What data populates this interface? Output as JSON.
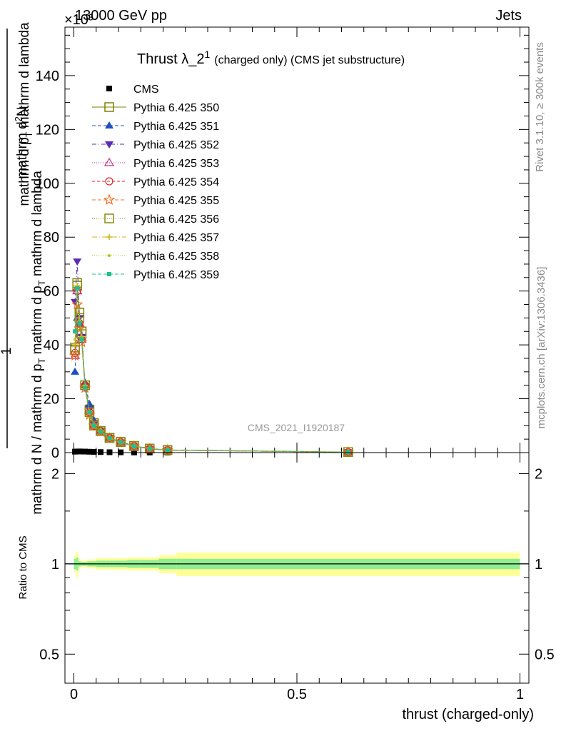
{
  "header": {
    "energy_label": "13000 GeV pp",
    "exponent_label": "×10³",
    "category_label": "Jets",
    "rivet_label": "Rivet 3.1.10, ≥ 300k events",
    "mcplots_label": "mcplots.cern.ch [arXiv:1306.3436]",
    "analysis_label": "CMS_2021_I1920187"
  },
  "colors": {
    "band_inner": "#90ee90",
    "band_outer": "#ffff99",
    "cms": "#000000"
  },
  "chart_data": [
    {
      "type": "line",
      "title": "Thrust λ_2¹",
      "title_parts": {
        "main": "Thrust λ_2",
        "sup": "1",
        "suffix": "(charged only) (CMS jet substructure)"
      },
      "ylabel": "1/(mathrm d N / mathrm d p_T mathrm d p_T) mathrm d²N / mathrm d p_T mathrm d lambda",
      "ylabel_parts": {
        "top": "mathrm d²N",
        "top_plain": "mathrm d",
        "top_sup": "2",
        "top_rest": "N",
        "bottom_a": "mathrm d p",
        "bottom_sub": "T",
        "bottom_b": " mathrm d lambda",
        "one": "1",
        "den_a": "mathrm d N / mathrm d p",
        "den_sub": "T",
        "den_b": " mathrm d p",
        "den_sub2": "T",
        "den_c": " mathrm d lambda"
      },
      "ylim": [
        0,
        158
      ],
      "ytick_values": [
        0,
        20,
        40,
        60,
        80,
        100,
        120,
        140
      ],
      "ytick_labels": [
        "0",
        "20",
        "40",
        "60",
        "80",
        "100",
        "120",
        "140"
      ],
      "xlim": [
        -0.02,
        1.02
      ],
      "grid": false,
      "legend_position": "top-left",
      "x": [
        0.0025,
        0.0075,
        0.0125,
        0.0175,
        0.025,
        0.035,
        0.045,
        0.06,
        0.08,
        0.105,
        0.135,
        0.17,
        0.21,
        0.615
      ],
      "series": [
        {
          "name": "CMS",
          "color": "#000000",
          "marker": "square-filled",
          "dash": "",
          "values": [
            0.35,
            0.4,
            0.42,
            0.4,
            0.38,
            0.32,
            0.26,
            0.2,
            0.14,
            0.1,
            0.06,
            0.04,
            0.03,
            0.01
          ]
        },
        {
          "name": "Pythia 6.425 350",
          "color": "#808000",
          "marker": "square-open",
          "dash": "",
          "values": [
            38,
            62,
            52,
            45,
            25,
            16,
            11,
            8,
            5.5,
            4,
            2.5,
            1.5,
            1,
            0.2
          ]
        },
        {
          "name": "Pythia 6.425 351",
          "color": "#1f4fbf",
          "marker": "triangle-up-filled",
          "dash": "5,3",
          "values": [
            30,
            50,
            48,
            43,
            26,
            18,
            12,
            8.5,
            5.5,
            4,
            2.4,
            1.4,
            0.9,
            0.15
          ]
        },
        {
          "name": "Pythia 6.425 352",
          "color": "#5b2bb3",
          "marker": "triangle-down-filled",
          "dash": "6,3,1,3",
          "values": [
            56,
            71,
            50,
            43,
            24,
            16,
            11,
            8,
            5.4,
            3.8,
            2.3,
            1.4,
            0.9,
            0.15
          ]
        },
        {
          "name": "Pythia 6.425 353",
          "color": "#c0307a",
          "marker": "triangle-up-open",
          "dash": "1,2",
          "values": [
            36,
            60,
            48,
            42,
            25,
            15,
            10,
            8,
            5.4,
            3.8,
            2.3,
            1.4,
            0.9,
            0.15
          ]
        },
        {
          "name": "Pythia 6.425 354",
          "color": "#e0202a",
          "marker": "circle-open",
          "dash": "4,3",
          "values": [
            37,
            60,
            48,
            42,
            25,
            15,
            10,
            8,
            5.5,
            3.9,
            2.4,
            1.5,
            0.9,
            0.15
          ]
        },
        {
          "name": "Pythia 6.425 355",
          "color": "#f07020",
          "marker": "star-open",
          "dash": "5,3",
          "values": [
            36,
            55,
            46,
            41,
            24,
            14,
            10,
            7.8,
            5.3,
            3.8,
            2.3,
            1.4,
            0.9,
            0.15
          ]
        },
        {
          "name": "Pythia 6.425 356",
          "color": "#8a8a10",
          "marker": "square-open",
          "dash": "1,2",
          "values": [
            39,
            63,
            50,
            44,
            25,
            15,
            10,
            8,
            5.4,
            3.9,
            2.4,
            1.5,
            0.9,
            0.2
          ]
        },
        {
          "name": "Pythia 6.425 357",
          "color": "#d4b410",
          "marker": "cross",
          "dash": "7,3,1,3",
          "values": [
            40,
            62,
            50,
            43,
            25,
            15,
            10,
            8,
            5.4,
            3.9,
            2.4,
            1.5,
            0.9,
            0.15
          ]
        },
        {
          "name": "Pythia 6.425 358",
          "color": "#a8d010",
          "marker": "dot",
          "dash": "1,2",
          "values": [
            42,
            61,
            49,
            43,
            25,
            15,
            10,
            8,
            5.4,
            3.9,
            2.4,
            1.5,
            0.9,
            0.15
          ]
        },
        {
          "name": "Pythia 6.425 359",
          "color": "#20c08a",
          "marker": "square-filled-small",
          "dash": "5,3",
          "values": [
            45,
            61,
            48,
            42,
            24,
            15,
            10,
            7.8,
            5.3,
            3.8,
            2.3,
            1.4,
            0.9,
            0.15
          ]
        }
      ]
    },
    {
      "type": "area",
      "ylabel": "Ratio to CMS",
      "xlabel": "thrust (charged-only)",
      "xlim": [
        -0.02,
        1.02
      ],
      "ylim": [
        0.4,
        2.35
      ],
      "ylog": true,
      "ytick_values": [
        0.5,
        1,
        2
      ],
      "ytick_labels": [
        "0.5",
        "1",
        "2"
      ],
      "xtick_values": [
        0,
        0.5,
        1
      ],
      "xtick_labels": [
        "0",
        "0.5",
        "1"
      ],
      "reference_line": 1,
      "bins": [
        {
          "lo": 0.0,
          "hi": 0.005,
          "inner": [
            0.96,
            1.04
          ],
          "outer": [
            0.94,
            1.07
          ]
        },
        {
          "lo": 0.005,
          "hi": 0.01,
          "inner": [
            0.95,
            1.05
          ],
          "outer": [
            0.9,
            1.1
          ]
        },
        {
          "lo": 0.01,
          "hi": 0.015,
          "inner": [
            0.98,
            1.02
          ],
          "outer": [
            0.96,
            1.04
          ]
        },
        {
          "lo": 0.015,
          "hi": 0.02,
          "inner": [
            0.985,
            1.015
          ],
          "outer": [
            0.975,
            1.025
          ]
        },
        {
          "lo": 0.02,
          "hi": 0.03,
          "inner": [
            0.985,
            1.015
          ],
          "outer": [
            0.975,
            1.025
          ]
        },
        {
          "lo": 0.03,
          "hi": 0.04,
          "inner": [
            0.98,
            1.02
          ],
          "outer": [
            0.965,
            1.035
          ]
        },
        {
          "lo": 0.04,
          "hi": 0.05,
          "inner": [
            0.98,
            1.02
          ],
          "outer": [
            0.965,
            1.035
          ]
        },
        {
          "lo": 0.05,
          "hi": 0.07,
          "inner": [
            0.975,
            1.025
          ],
          "outer": [
            0.955,
            1.045
          ]
        },
        {
          "lo": 0.07,
          "hi": 0.09,
          "inner": [
            0.975,
            1.025
          ],
          "outer": [
            0.955,
            1.045
          ]
        },
        {
          "lo": 0.09,
          "hi": 0.12,
          "inner": [
            0.975,
            1.025
          ],
          "outer": [
            0.955,
            1.045
          ]
        },
        {
          "lo": 0.12,
          "hi": 0.15,
          "inner": [
            0.97,
            1.03
          ],
          "outer": [
            0.95,
            1.05
          ]
        },
        {
          "lo": 0.15,
          "hi": 0.19,
          "inner": [
            0.97,
            1.03
          ],
          "outer": [
            0.95,
            1.05
          ]
        },
        {
          "lo": 0.19,
          "hi": 0.23,
          "inner": [
            0.96,
            1.04
          ],
          "outer": [
            0.93,
            1.07
          ]
        },
        {
          "lo": 0.23,
          "hi": 1.0,
          "inner": [
            0.96,
            1.04
          ],
          "outer": [
            0.91,
            1.09
          ]
        }
      ]
    }
  ]
}
